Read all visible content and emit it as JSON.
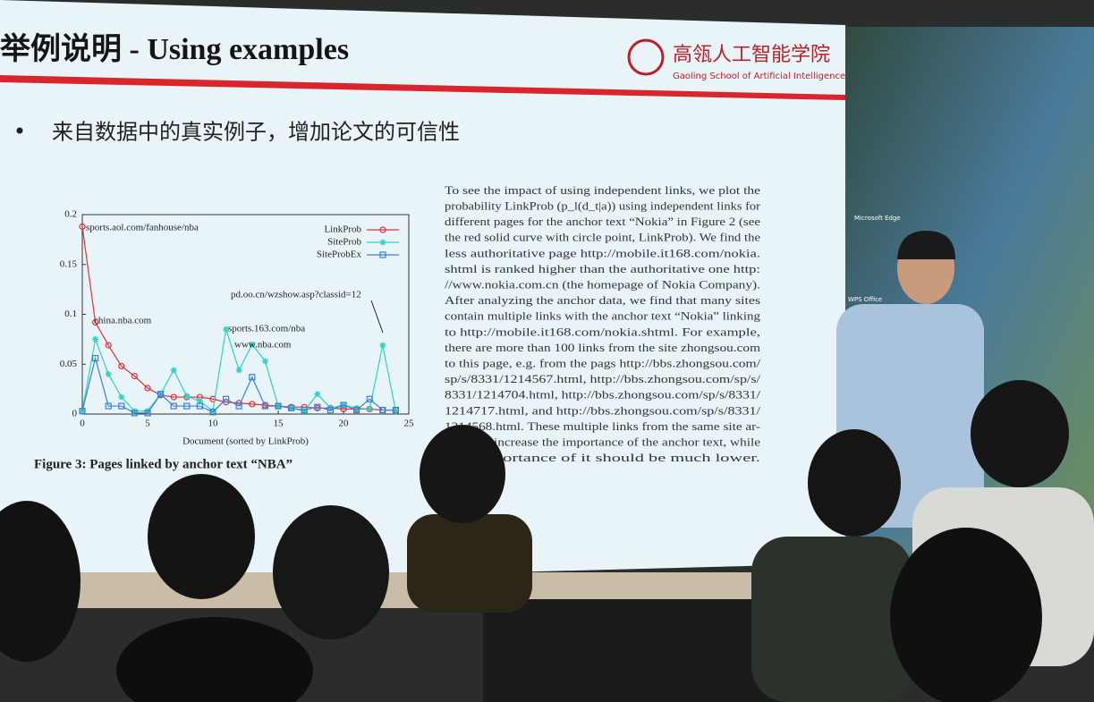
{
  "slide": {
    "title": "举例说明 - Using examples",
    "logo": {
      "name": "高瓴人工智能学院",
      "subtitle": "Gaoling School of Artificial Intelligence"
    },
    "bullet": "来自数据中的真实例子，增加论文的可信性",
    "figure": {
      "type": "line",
      "xlabel": "Document (sorted by LinkProb)",
      "x": [
        0,
        1,
        2,
        3,
        4,
        5,
        6,
        7,
        8,
        9,
        10,
        11,
        12,
        13,
        14,
        15,
        16,
        17,
        18,
        19,
        20,
        21,
        22,
        23,
        24
      ],
      "xlim": [
        0,
        25
      ],
      "xticks": [
        0,
        5,
        10,
        15,
        20,
        25
      ],
      "ylim": [
        0,
        0.2
      ],
      "yticks": [
        0,
        0.05,
        0.1,
        0.15,
        0.2
      ],
      "legend": "upper right",
      "series": [
        {
          "name": "LinkProb",
          "color": "#e0303a",
          "marker": "circle",
          "values": [
            0.188,
            0.092,
            0.069,
            0.048,
            0.038,
            0.026,
            0.019,
            0.017,
            0.017,
            0.017,
            0.015,
            0.012,
            0.011,
            0.01,
            0.009,
            0.008,
            0.007,
            0.007,
            0.006,
            0.006,
            0.005,
            0.005,
            0.005,
            0.004,
            0.004
          ]
        },
        {
          "name": "SiteProb",
          "color": "#2fd3c0",
          "marker": "asterisk",
          "values": [
            0.003,
            0.075,
            0.04,
            0.017,
            0.003,
            0.003,
            0.02,
            0.044,
            0.018,
            0.013,
            0.003,
            0.085,
            0.044,
            0.07,
            0.053,
            0.008,
            0.006,
            0.003,
            0.02,
            0.006,
            0.009,
            0.006,
            0.005,
            0.069,
            0.003
          ]
        },
        {
          "name": "SiteProbEx",
          "color": "#3a7fd6",
          "marker": "square",
          "values": [
            0.003,
            0.056,
            0.008,
            0.008,
            0.001,
            0.001,
            0.02,
            0.008,
            0.008,
            0.008,
            0.002,
            0.015,
            0.008,
            0.037,
            0.008,
            0.008,
            0.006,
            0.004,
            0.007,
            0.004,
            0.009,
            0.004,
            0.015,
            0.004,
            0.004
          ]
        }
      ],
      "annotations": [
        "sports.aol.com/fanhouse/nba",
        "china.nba.com",
        "sports.163.com/nba",
        "www.nba.com",
        "pd.oo.cn/wzshow.asp?classid=12"
      ],
      "caption": "Figure 3: Pages linked by anchor text “NBA”"
    },
    "paragraph": [
      "To see the impact of using independent links, we plot the",
      "probability LinkProb (p_l(d_t|a)) using independent links for",
      "different pages for the anchor text “Nokia” in Figure 2 (see",
      "the red solid curve with circle point, LinkProb). We find the",
      "less authoritative page http://mobile.it168.com/nokia.",
      "shtml is ranked higher than the authoritative one http:",
      "//www.nokia.com.cn (the homepage of Nokia Company).",
      "After analyzing the anchor data, we find that many sites",
      "contain multiple links with the anchor text “Nokia” linking",
      "to http://mobile.it168.com/nokia.shtml. For example,",
      "there are more than 100 links from the site zhongsou.com",
      "to this page, e.g. from the pags http://bbs.zhongsou.com/",
      "sp/s/8331/1214567.html, http://bbs.zhongsou.com/sp/s/",
      "8331/1214704.html, http://bbs.zhongsou.com/sp/s/8331/",
      "1214717.html, and http://bbs.zhongsou.com/sp/s/8331/",
      "1214568.html. These multiple links from the same site ar-",
      "increase the importance of the anchor text, while",
      "portance of it should be much lower."
    ],
    "desktop_icons": [
      "Microsoft Edge",
      "WPS Office"
    ]
  }
}
